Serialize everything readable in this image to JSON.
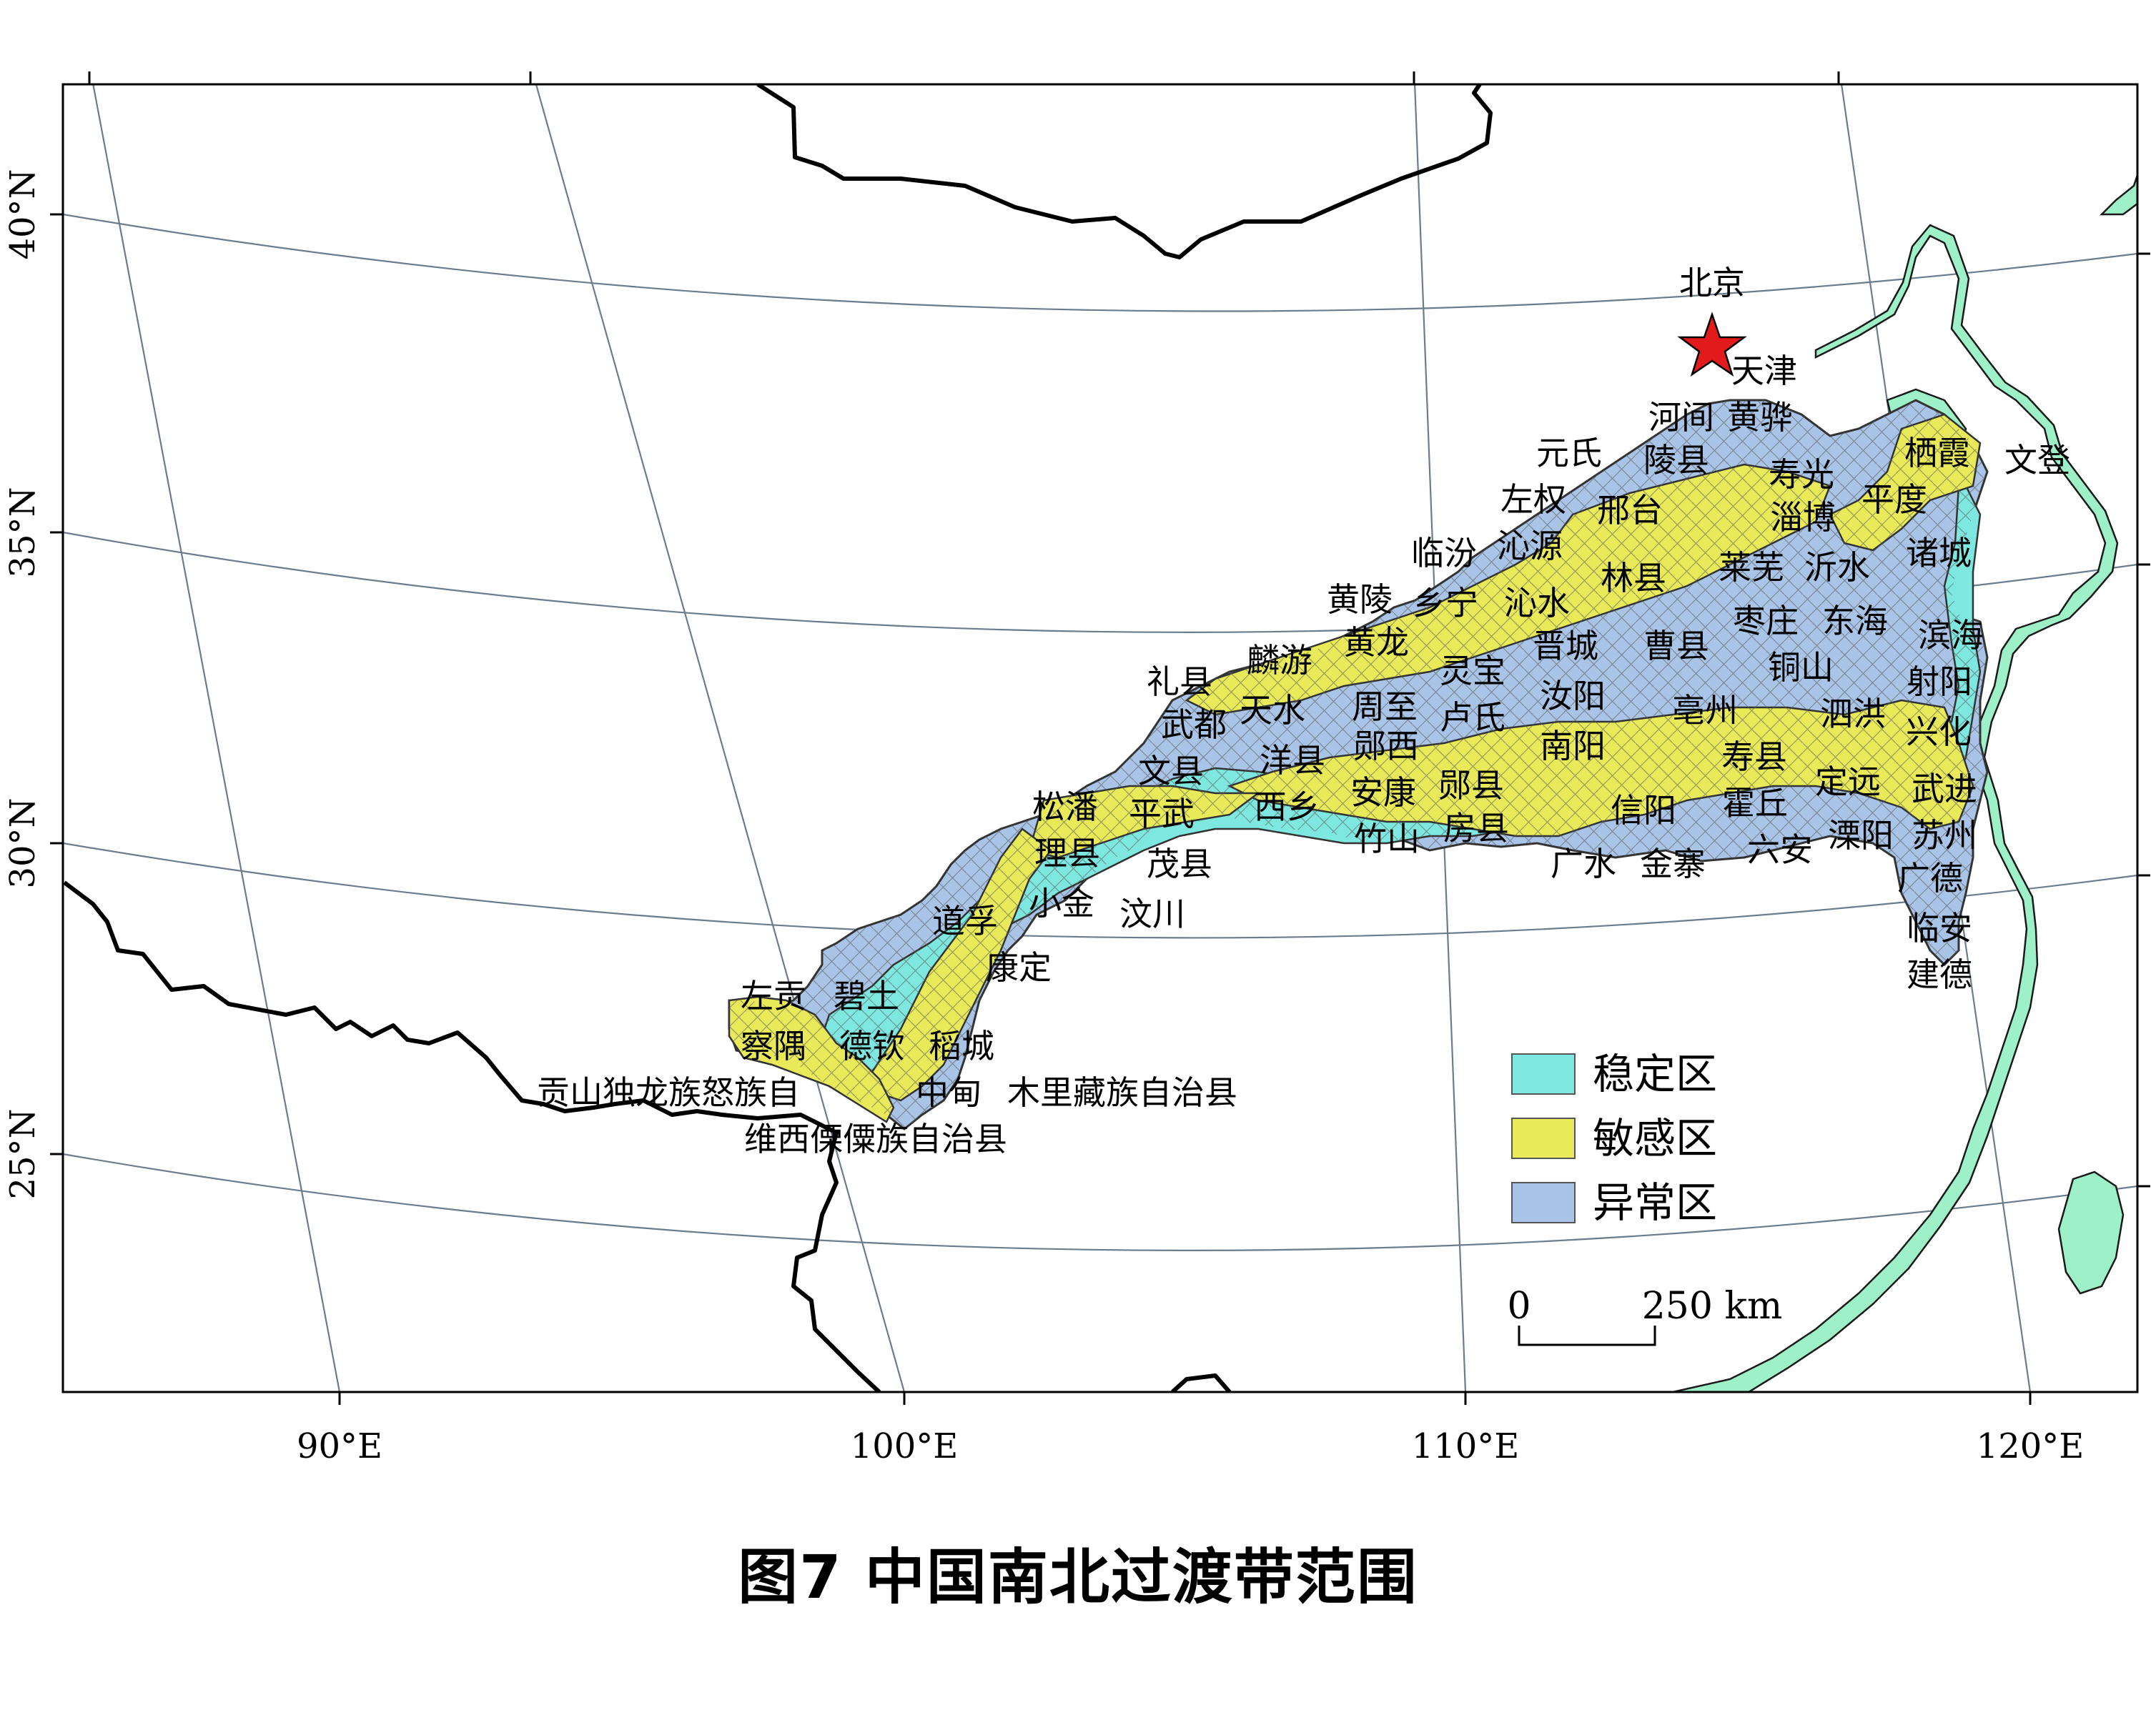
{
  "caption": "图7  中国南北过渡带范围",
  "capital": {
    "name": "北京",
    "symbol": "star-icon",
    "color": "#e31a1c"
  },
  "legend": [
    {
      "label": "稳定区",
      "color": "#7ee8e0"
    },
    {
      "label": "敏感区",
      "color": "#e8ea5a"
    },
    {
      "label": "异常区",
      "color": "#a9c4e6"
    }
  ],
  "scale_bar": {
    "start": "0",
    "end": "250 km"
  },
  "longitude_labels": [
    "90°E",
    "100°E",
    "110°E",
    "120°E"
  ],
  "latitude_labels": [
    "40°N",
    "35°N",
    "30°N",
    "25°N"
  ],
  "place_names": [
    "天津",
    "河间",
    "黄骅",
    "元氏",
    "陵县",
    "栖霞",
    "文登",
    "寿光",
    "左权",
    "邢台",
    "淄博",
    "平度",
    "临汾",
    "沁源",
    "莱芜",
    "沂水",
    "诸城",
    "黄陵",
    "乡宁",
    "沁水",
    "林县",
    "枣庄",
    "东海",
    "滨海",
    "麟游",
    "黄龙",
    "晋城",
    "曹县",
    "礼县",
    "灵宝",
    "铜山",
    "射阳",
    "武都",
    "天水",
    "周至",
    "卢氏",
    "汝阳",
    "亳州",
    "泗洪",
    "兴化",
    "文县",
    "洋县",
    "郧西",
    "南阳",
    "寿县",
    "松潘",
    "西乡",
    "安康",
    "郧县",
    "定远",
    "武进",
    "平武",
    "信阳",
    "霍丘",
    "理县",
    "竹山",
    "房县",
    "溧阳",
    "苏州",
    "茂县",
    "广水",
    "金寨",
    "六安",
    "广德",
    "道孚",
    "小金",
    "汶川",
    "临安",
    "康定",
    "建德",
    "左贡",
    "碧土",
    "察隅",
    "德钦",
    "稻城",
    "贡山独龙族怒族自",
    "中甸",
    "木里藏族自治县",
    "维西傈僳族自治县"
  ]
}
